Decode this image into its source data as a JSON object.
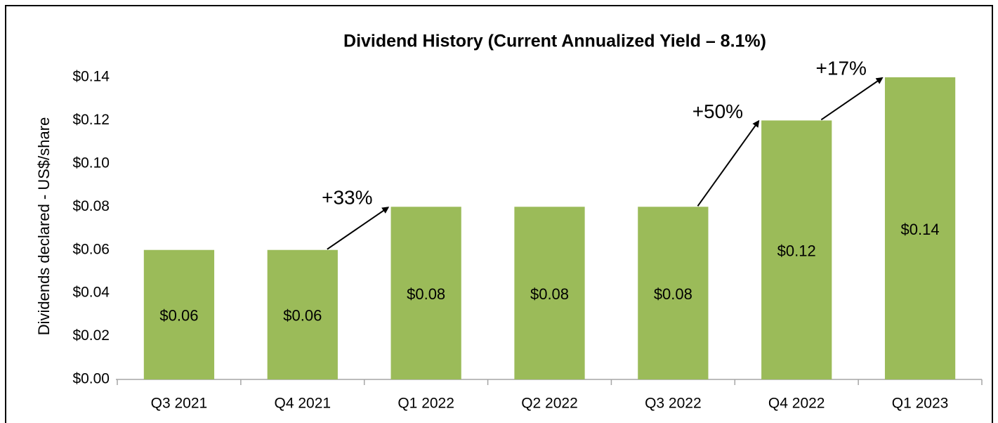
{
  "chart_data": {
    "type": "bar",
    "title": "Dividend History (Current Annualized Yield – 8.1%)",
    "y_label": "Dividends declared - US$/share",
    "categories": [
      "Q3 2021",
      "Q4 2021",
      "Q1 2022",
      "Q2 2022",
      "Q3 2022",
      "Q4 2022",
      "Q1 2023"
    ],
    "values": [
      0.06,
      0.06,
      0.08,
      0.08,
      0.08,
      0.12,
      0.14
    ],
    "value_labels": [
      "$0.06",
      "$0.06",
      "$0.08",
      "$0.08",
      "$0.08",
      "$0.12",
      "$0.14"
    ],
    "color": "#9bbb59",
    "ylim": [
      0,
      0.14
    ],
    "yticks": [
      {
        "value": 0,
        "label": "$0.00"
      },
      {
        "value": 0.02,
        "label": "$0.02"
      },
      {
        "value": 0.04,
        "label": "$0.04"
      },
      {
        "value": 0.06,
        "label": "$0.06"
      },
      {
        "value": 0.08,
        "label": "$0.08"
      },
      {
        "value": 0.1,
        "label": "$0.10"
      },
      {
        "value": 0.12,
        "label": "$0.12"
      },
      {
        "value": 0.14,
        "label": "$0.14"
      }
    ],
    "grid": false,
    "annotations": [
      "+33%",
      "+50%",
      "+17%"
    ]
  }
}
